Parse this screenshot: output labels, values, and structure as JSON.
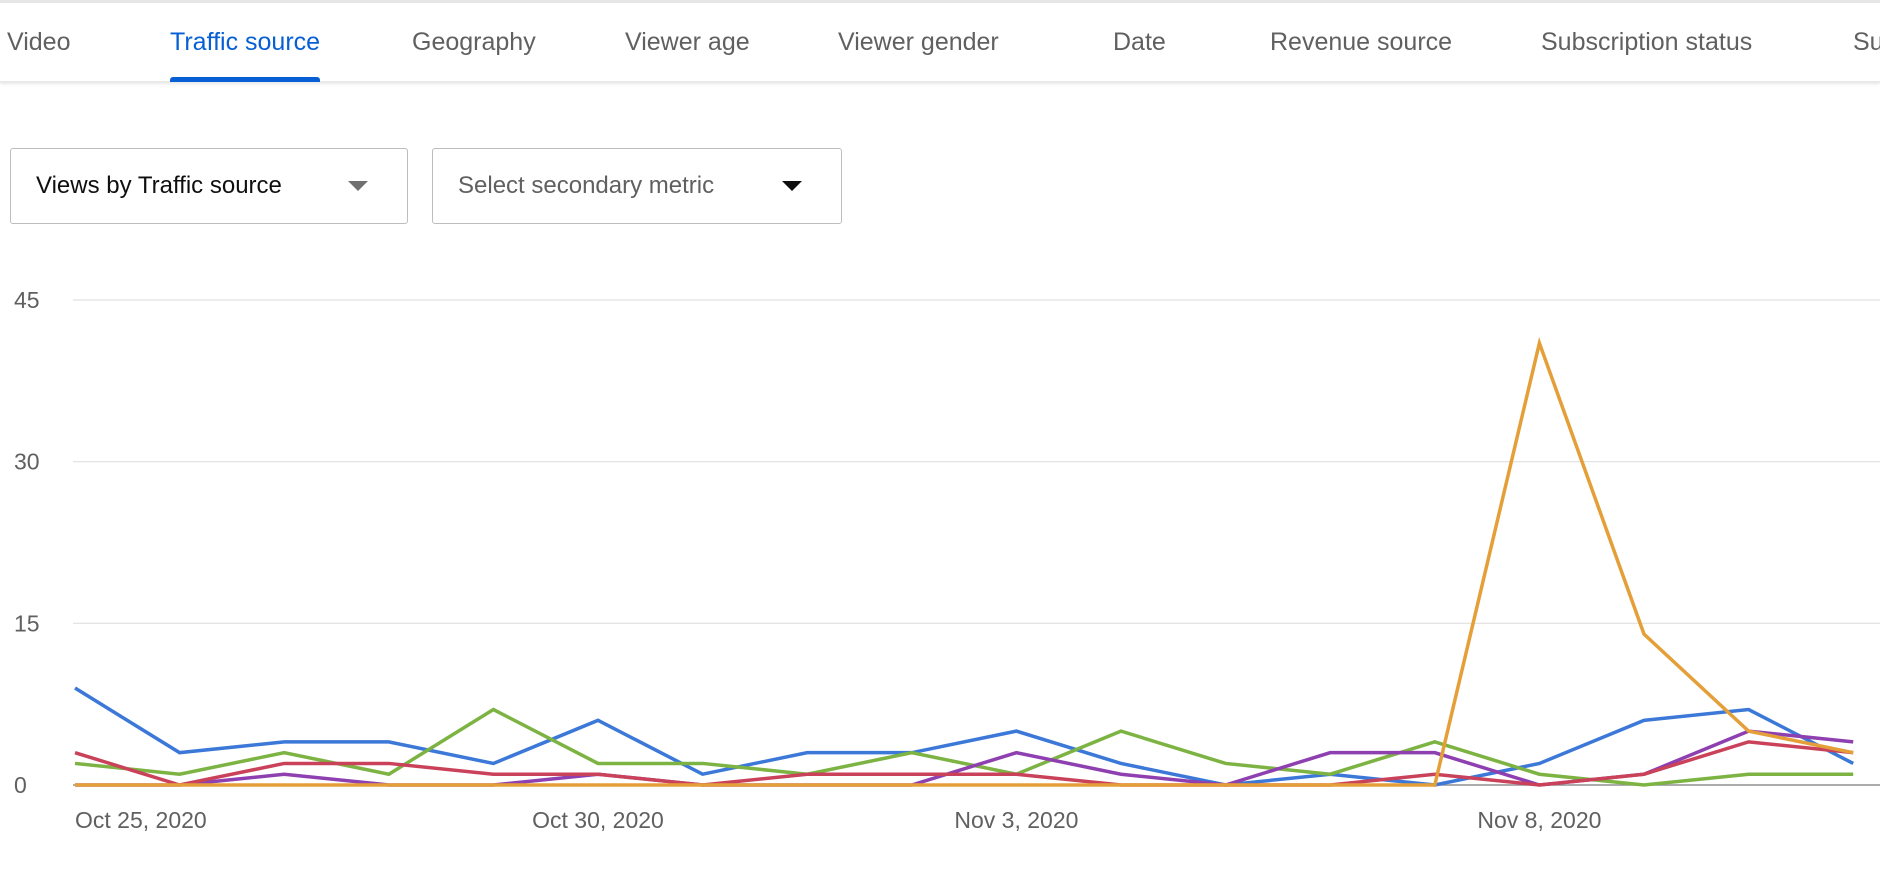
{
  "tabs": [
    {
      "label": "Video",
      "active": false
    },
    {
      "label": "Traffic source",
      "active": true
    },
    {
      "label": "Geography",
      "active": false
    },
    {
      "label": "Viewer age",
      "active": false
    },
    {
      "label": "Viewer gender",
      "active": false
    },
    {
      "label": "Date",
      "active": false
    },
    {
      "label": "Revenue source",
      "active": false
    },
    {
      "label": "Subscription status",
      "active": false
    },
    {
      "label": "Su",
      "active": false
    }
  ],
  "metric_select": {
    "value": "Views by Traffic source",
    "icon": "caret-down-icon"
  },
  "secondary_select": {
    "placeholder": "Select secondary metric",
    "icon": "caret-down-icon"
  },
  "colors": {
    "accent": "#065fd4",
    "grid": "#e0e0e0",
    "axis_text": "#606060"
  },
  "chart_data": {
    "type": "line",
    "x": [
      "Oct 25, 2020",
      "Oct 26, 2020",
      "Oct 27, 2020",
      "Oct 28, 2020",
      "Oct 29, 2020",
      "Oct 30, 2020",
      "Oct 31, 2020",
      "Nov 1, 2020",
      "Nov 2, 2020",
      "Nov 3, 2020",
      "Nov 4, 2020",
      "Nov 5, 2020",
      "Nov 6, 2020",
      "Nov 7, 2020",
      "Nov 8, 2020",
      "Nov 9, 2020",
      "Nov 10, 2020",
      "Nov 11, 2020"
    ],
    "xticks": [
      "Oct 25, 2020",
      "Oct 30, 2020",
      "Nov 3, 2020",
      "Nov 8, 2020"
    ],
    "yticks": [
      0,
      15,
      30,
      45
    ],
    "ylim": [
      0,
      45
    ],
    "grid": true,
    "series": [
      {
        "color": "#3b78d8",
        "values": [
          9,
          3,
          4,
          4,
          2,
          6,
          1,
          3,
          3,
          5,
          2,
          0,
          1,
          0,
          2,
          6,
          7,
          2
        ]
      },
      {
        "color": "#7cb342",
        "values": [
          2,
          1,
          3,
          1,
          7,
          2,
          2,
          1,
          3,
          1,
          5,
          2,
          1,
          4,
          1,
          0,
          1,
          1
        ]
      },
      {
        "color": "#8e3fb0",
        "values": [
          0,
          0,
          1,
          0,
          0,
          1,
          0,
          0,
          0,
          3,
          1,
          0,
          3,
          3,
          0,
          1,
          5,
          4
        ]
      },
      {
        "color": "#c9425a",
        "values": [
          3,
          0,
          2,
          2,
          1,
          1,
          0,
          1,
          1,
          1,
          0,
          0,
          0,
          1,
          0,
          1,
          4,
          3
        ]
      },
      {
        "color": "#e59f39",
        "values": [
          0,
          0,
          0,
          0,
          0,
          0,
          0,
          0,
          0,
          0,
          0,
          0,
          0,
          0,
          41,
          14,
          5,
          3
        ]
      }
    ]
  }
}
